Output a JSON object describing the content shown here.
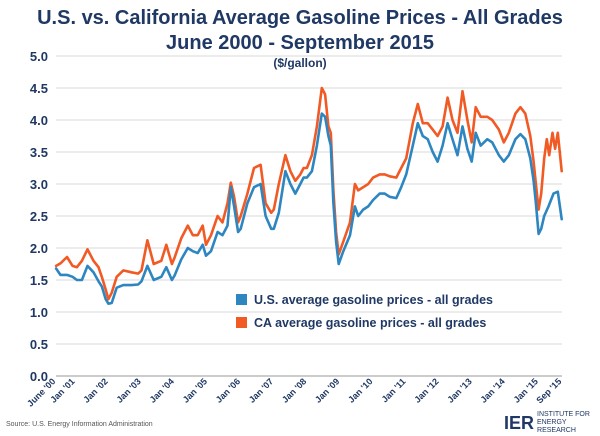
{
  "chart_data": {
    "type": "line",
    "title": "U.S. vs. California Average Gasoline Prices  - All Grades",
    "subtitle": "June 2000 - September 2015",
    "unit": "($/gallon)",
    "ylim": [
      0,
      5
    ],
    "yticks": [
      "0.0",
      "0.5",
      "1.0",
      "1.5",
      "2.0",
      "2.5",
      "3.0",
      "3.5",
      "4.0",
      "4.5",
      "5.0"
    ],
    "xlim": [
      2000.417,
      2015.708
    ],
    "xticks": [
      {
        "label": "June '00",
        "x": 2000.417
      },
      {
        "label": "Jan '01",
        "x": 2001.0
      },
      {
        "label": "Jan '02",
        "x": 2002.0
      },
      {
        "label": "Jan '03",
        "x": 2003.0
      },
      {
        "label": "Jan '04",
        "x": 2004.0
      },
      {
        "label": "Jan '05",
        "x": 2005.0
      },
      {
        "label": "Jan '06",
        "x": 2006.0
      },
      {
        "label": "Jan '07",
        "x": 2007.0
      },
      {
        "label": "Jan '08",
        "x": 2008.0
      },
      {
        "label": "Jan '09",
        "x": 2009.0
      },
      {
        "label": "Jan '10",
        "x": 2010.0
      },
      {
        "label": "Jan '11",
        "x": 2011.0
      },
      {
        "label": "Jan '12",
        "x": 2012.0
      },
      {
        "label": "Jan '13",
        "x": 2013.0
      },
      {
        "label": "Jan '14",
        "x": 2014.0
      },
      {
        "label": "Jan '15",
        "x": 2015.0
      },
      {
        "label": "Sep '15",
        "x": 2015.708
      }
    ],
    "legend_position": "center-right",
    "series": [
      {
        "name": "U.S. average gasoline prices - all grades",
        "color": "#2e86c1",
        "points": [
          [
            2000.42,
            1.68
          ],
          [
            2000.55,
            1.58
          ],
          [
            2000.75,
            1.58
          ],
          [
            2000.92,
            1.55
          ],
          [
            2001.05,
            1.5
          ],
          [
            2001.2,
            1.5
          ],
          [
            2001.37,
            1.72
          ],
          [
            2001.55,
            1.62
          ],
          [
            2001.7,
            1.48
          ],
          [
            2001.8,
            1.4
          ],
          [
            2001.92,
            1.2
          ],
          [
            2002.0,
            1.13
          ],
          [
            2002.1,
            1.14
          ],
          [
            2002.25,
            1.38
          ],
          [
            2002.45,
            1.42
          ],
          [
            2002.7,
            1.42
          ],
          [
            2002.9,
            1.43
          ],
          [
            2003.0,
            1.48
          ],
          [
            2003.18,
            1.72
          ],
          [
            2003.37,
            1.5
          ],
          [
            2003.6,
            1.55
          ],
          [
            2003.75,
            1.7
          ],
          [
            2003.92,
            1.5
          ],
          [
            2004.0,
            1.57
          ],
          [
            2004.2,
            1.82
          ],
          [
            2004.4,
            2.0
          ],
          [
            2004.55,
            1.95
          ],
          [
            2004.7,
            1.92
          ],
          [
            2004.85,
            2.05
          ],
          [
            2004.95,
            1.88
          ],
          [
            2005.1,
            1.95
          ],
          [
            2005.3,
            2.25
          ],
          [
            2005.45,
            2.2
          ],
          [
            2005.6,
            2.35
          ],
          [
            2005.7,
            2.95
          ],
          [
            2005.8,
            2.65
          ],
          [
            2005.92,
            2.25
          ],
          [
            2006.0,
            2.3
          ],
          [
            2006.2,
            2.7
          ],
          [
            2006.4,
            2.95
          ],
          [
            2006.6,
            3.0
          ],
          [
            2006.75,
            2.5
          ],
          [
            2006.92,
            2.3
          ],
          [
            2007.0,
            2.3
          ],
          [
            2007.15,
            2.55
          ],
          [
            2007.35,
            3.2
          ],
          [
            2007.5,
            3.0
          ],
          [
            2007.65,
            2.85
          ],
          [
            2007.8,
            3.0
          ],
          [
            2007.9,
            3.1
          ],
          [
            2008.0,
            3.1
          ],
          [
            2008.15,
            3.2
          ],
          [
            2008.3,
            3.6
          ],
          [
            2008.45,
            4.1
          ],
          [
            2008.55,
            4.05
          ],
          [
            2008.65,
            3.75
          ],
          [
            2008.72,
            3.6
          ],
          [
            2008.8,
            2.7
          ],
          [
            2008.88,
            2.1
          ],
          [
            2008.96,
            1.75
          ],
          [
            2009.1,
            1.95
          ],
          [
            2009.3,
            2.2
          ],
          [
            2009.45,
            2.65
          ],
          [
            2009.55,
            2.5
          ],
          [
            2009.7,
            2.6
          ],
          [
            2009.85,
            2.65
          ],
          [
            2010.0,
            2.75
          ],
          [
            2010.2,
            2.85
          ],
          [
            2010.35,
            2.85
          ],
          [
            2010.5,
            2.8
          ],
          [
            2010.7,
            2.78
          ],
          [
            2010.85,
            2.95
          ],
          [
            2011.0,
            3.15
          ],
          [
            2011.2,
            3.6
          ],
          [
            2011.35,
            3.95
          ],
          [
            2011.5,
            3.75
          ],
          [
            2011.65,
            3.7
          ],
          [
            2011.8,
            3.5
          ],
          [
            2011.95,
            3.35
          ],
          [
            2012.1,
            3.6
          ],
          [
            2012.25,
            3.95
          ],
          [
            2012.4,
            3.7
          ],
          [
            2012.55,
            3.45
          ],
          [
            2012.7,
            3.9
          ],
          [
            2012.85,
            3.55
          ],
          [
            2012.98,
            3.35
          ],
          [
            2013.1,
            3.8
          ],
          [
            2013.25,
            3.6
          ],
          [
            2013.45,
            3.7
          ],
          [
            2013.6,
            3.65
          ],
          [
            2013.8,
            3.45
          ],
          [
            2013.95,
            3.35
          ],
          [
            2014.1,
            3.45
          ],
          [
            2014.3,
            3.7
          ],
          [
            2014.45,
            3.78
          ],
          [
            2014.6,
            3.7
          ],
          [
            2014.75,
            3.4
          ],
          [
            2014.85,
            3.05
          ],
          [
            2014.92,
            2.7
          ],
          [
            2015.0,
            2.22
          ],
          [
            2015.08,
            2.3
          ],
          [
            2015.17,
            2.5
          ],
          [
            2015.3,
            2.65
          ],
          [
            2015.45,
            2.85
          ],
          [
            2015.58,
            2.88
          ],
          [
            2015.7,
            2.45
          ]
        ]
      },
      {
        "name": "CA average gasoline prices - all grades",
        "color": "#f15a24",
        "points": [
          [
            2000.42,
            1.72
          ],
          [
            2000.55,
            1.76
          ],
          [
            2000.75,
            1.86
          ],
          [
            2000.92,
            1.72
          ],
          [
            2001.05,
            1.7
          ],
          [
            2001.2,
            1.8
          ],
          [
            2001.37,
            1.98
          ],
          [
            2001.55,
            1.8
          ],
          [
            2001.7,
            1.7
          ],
          [
            2001.8,
            1.55
          ],
          [
            2001.92,
            1.35
          ],
          [
            2002.0,
            1.2
          ],
          [
            2002.1,
            1.3
          ],
          [
            2002.25,
            1.55
          ],
          [
            2002.45,
            1.65
          ],
          [
            2002.7,
            1.62
          ],
          [
            2002.9,
            1.6
          ],
          [
            2003.0,
            1.65
          ],
          [
            2003.18,
            2.12
          ],
          [
            2003.37,
            1.75
          ],
          [
            2003.6,
            1.8
          ],
          [
            2003.75,
            2.05
          ],
          [
            2003.92,
            1.75
          ],
          [
            2004.0,
            1.85
          ],
          [
            2004.2,
            2.15
          ],
          [
            2004.4,
            2.35
          ],
          [
            2004.55,
            2.2
          ],
          [
            2004.7,
            2.2
          ],
          [
            2004.85,
            2.35
          ],
          [
            2004.95,
            2.05
          ],
          [
            2005.1,
            2.2
          ],
          [
            2005.3,
            2.5
          ],
          [
            2005.45,
            2.4
          ],
          [
            2005.6,
            2.7
          ],
          [
            2005.7,
            3.02
          ],
          [
            2005.8,
            2.8
          ],
          [
            2005.92,
            2.4
          ],
          [
            2006.0,
            2.5
          ],
          [
            2006.2,
            2.85
          ],
          [
            2006.4,
            3.25
          ],
          [
            2006.6,
            3.3
          ],
          [
            2006.75,
            2.7
          ],
          [
            2006.92,
            2.55
          ],
          [
            2007.0,
            2.6
          ],
          [
            2007.15,
            3.0
          ],
          [
            2007.35,
            3.45
          ],
          [
            2007.5,
            3.2
          ],
          [
            2007.65,
            3.05
          ],
          [
            2007.8,
            3.15
          ],
          [
            2007.9,
            3.25
          ],
          [
            2008.0,
            3.25
          ],
          [
            2008.15,
            3.45
          ],
          [
            2008.3,
            3.9
          ],
          [
            2008.45,
            4.5
          ],
          [
            2008.55,
            4.4
          ],
          [
            2008.65,
            3.9
          ],
          [
            2008.72,
            3.8
          ],
          [
            2008.8,
            2.9
          ],
          [
            2008.88,
            2.25
          ],
          [
            2008.96,
            1.9
          ],
          [
            2009.1,
            2.1
          ],
          [
            2009.3,
            2.4
          ],
          [
            2009.45,
            3.0
          ],
          [
            2009.55,
            2.9
          ],
          [
            2009.7,
            2.95
          ],
          [
            2009.85,
            3.0
          ],
          [
            2010.0,
            3.1
          ],
          [
            2010.2,
            3.15
          ],
          [
            2010.35,
            3.15
          ],
          [
            2010.5,
            3.12
          ],
          [
            2010.7,
            3.1
          ],
          [
            2010.85,
            3.25
          ],
          [
            2011.0,
            3.4
          ],
          [
            2011.2,
            3.95
          ],
          [
            2011.35,
            4.25
          ],
          [
            2011.5,
            3.95
          ],
          [
            2011.65,
            3.95
          ],
          [
            2011.8,
            3.85
          ],
          [
            2011.95,
            3.75
          ],
          [
            2012.1,
            3.9
          ],
          [
            2012.25,
            4.35
          ],
          [
            2012.4,
            4.0
          ],
          [
            2012.55,
            3.8
          ],
          [
            2012.7,
            4.45
          ],
          [
            2012.85,
            4.0
          ],
          [
            2012.98,
            3.65
          ],
          [
            2013.1,
            4.2
          ],
          [
            2013.25,
            4.05
          ],
          [
            2013.45,
            4.05
          ],
          [
            2013.6,
            4.0
          ],
          [
            2013.8,
            3.85
          ],
          [
            2013.95,
            3.65
          ],
          [
            2014.1,
            3.8
          ],
          [
            2014.3,
            4.1
          ],
          [
            2014.45,
            4.2
          ],
          [
            2014.6,
            4.1
          ],
          [
            2014.75,
            3.75
          ],
          [
            2014.85,
            3.35
          ],
          [
            2014.92,
            3.0
          ],
          [
            2015.0,
            2.6
          ],
          [
            2015.08,
            2.85
          ],
          [
            2015.17,
            3.4
          ],
          [
            2015.25,
            3.7
          ],
          [
            2015.32,
            3.45
          ],
          [
            2015.42,
            3.8
          ],
          [
            2015.5,
            3.55
          ],
          [
            2015.58,
            3.8
          ],
          [
            2015.7,
            3.2
          ]
        ]
      }
    ]
  },
  "footer": {
    "source": "Source: U.S. Energy Information Administration",
    "logo_mark": "IER",
    "logo_text": "INSTITUTE FOR ENERGY RESEARCH"
  }
}
